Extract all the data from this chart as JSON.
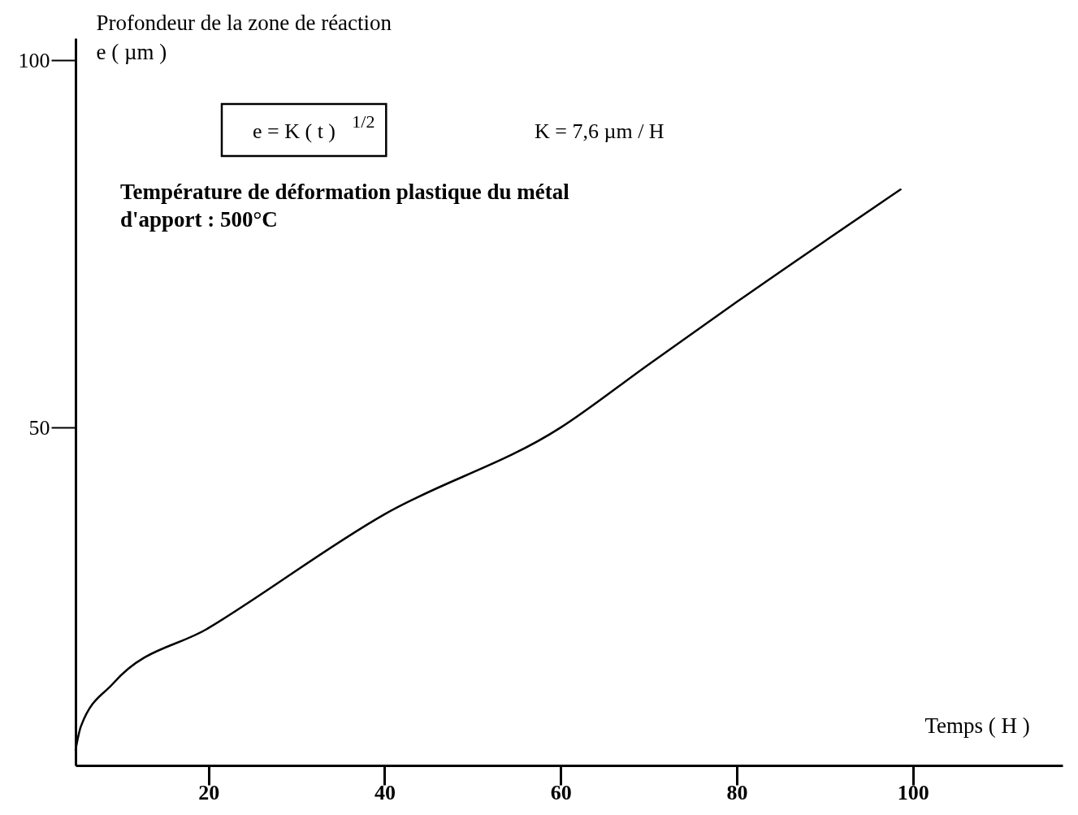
{
  "chart_data": {
    "type": "line",
    "xlabel": "Temps ( H )",
    "ylabel": "Profondeur de la zone de réaction\n  e ( µm )",
    "x": [
      4.9,
      5.5,
      9.2,
      20,
      40,
      60,
      70,
      80,
      98.6
    ],
    "series": [
      {
        "color": "#000000",
        "values": [
          6.1,
          9.3,
          15.2,
          22.7,
          38.2,
          50,
          58.6,
          67.1,
          82.4
        ]
      }
    ],
    "xlim": [
      4.9,
      117
    ],
    "ylim": [
      4,
      103
    ],
    "xticks": [
      20,
      40,
      60,
      80,
      100
    ],
    "yticks": [
      50,
      100
    ],
    "grid": false,
    "legend": false,
    "marker": "none",
    "line_style": "solid",
    "annotations": [
      "e = K ( t )$^{1/2}$",
      "K = 7,6  µm / H",
      "Température de déformation plastique du métal\nd'apport : 500°C"
    ]
  }
}
